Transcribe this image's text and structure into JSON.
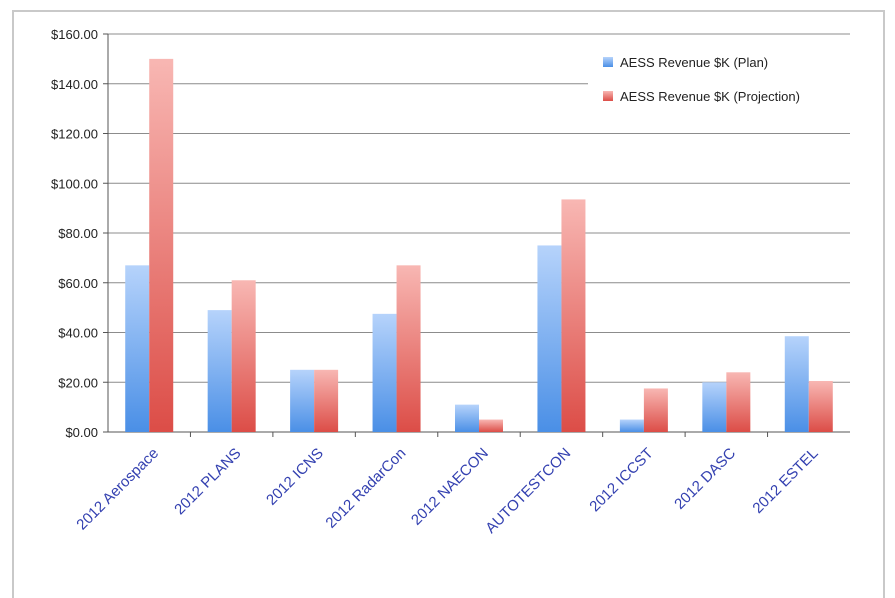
{
  "chart_data": {
    "type": "bar",
    "title": "",
    "xlabel": "",
    "ylabel": "",
    "categories": [
      "2012 Aerospace",
      "2012 PLANS",
      "2012 ICNS",
      "2012 RadarCon",
      "2012 NAECON",
      "AUTOTESTCON",
      "2012 ICCST",
      "2012 DASC",
      "2012 ESTEL"
    ],
    "series": [
      {
        "name": "AESS Revenue $K (Plan)",
        "values": [
          67,
          49,
          25,
          47.5,
          11,
          75,
          5,
          20,
          38.5
        ]
      },
      {
        "name": "AESS Revenue $K (Projection)",
        "values": [
          150,
          61,
          25,
          67,
          5,
          93.5,
          17.5,
          24,
          20.5
        ]
      }
    ],
    "ylim": [
      0,
      160
    ],
    "yticks": [
      "$0.00",
      "$20.00",
      "$40.00",
      "$60.00",
      "$80.00",
      "$100.00",
      "$120.00",
      "$140.00",
      "$160.00"
    ],
    "grid": true,
    "legend_position": "top-right",
    "colors": {
      "plan_light": "#b6d3fb",
      "plan_dark": "#4a8fe6",
      "proj_light": "#f8b7b3",
      "proj_dark": "#dc4d47",
      "grid": "#8c8c8c",
      "tick_label_x": "#3340b0"
    }
  }
}
